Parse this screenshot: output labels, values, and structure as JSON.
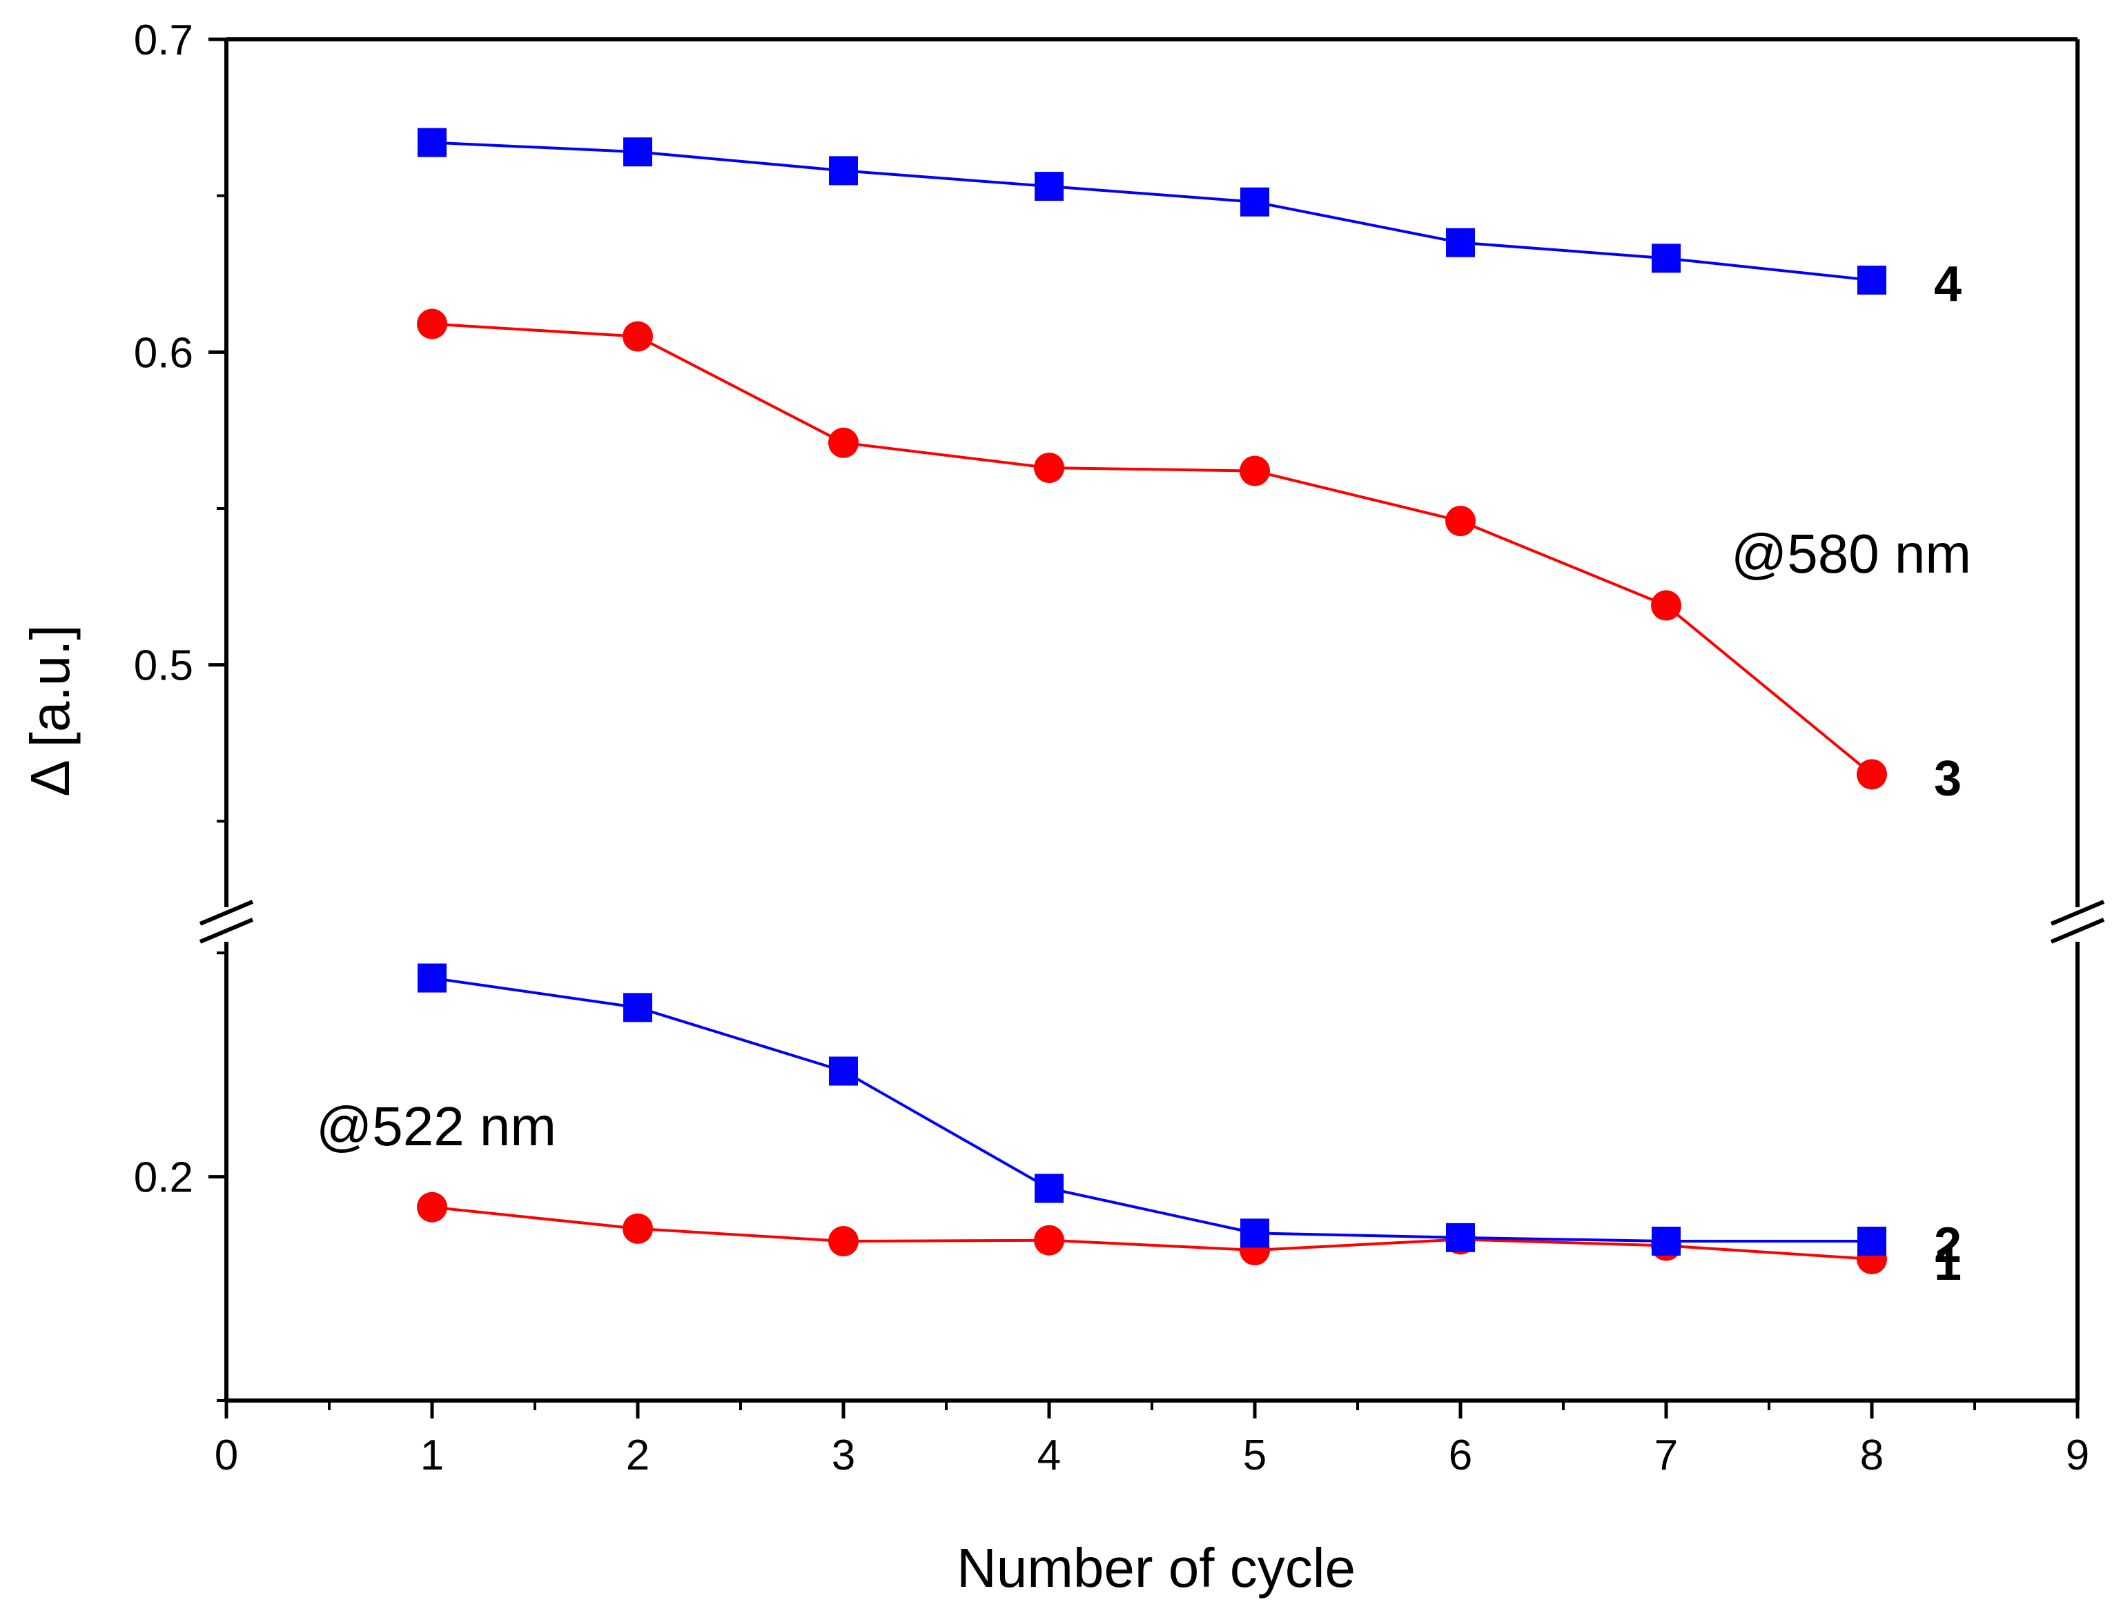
{
  "chart_data": {
    "type": "line",
    "xlabel": "Number of cycle",
    "ylabel": "Δ [a.u.]",
    "xlim": [
      0,
      9
    ],
    "x_ticks": [
      "0",
      "1",
      "2",
      "3",
      "4",
      "5",
      "6",
      "7",
      "8",
      "9"
    ],
    "ylim": [
      0.15,
      0.7
    ],
    "y_axis_break": [
      0.2525,
      0.4225
    ],
    "y_segments": [
      {
        "range": [
          0.15,
          0.2525
        ]
      },
      {
        "range": [
          0.4225,
          0.7
        ]
      }
    ],
    "y_ticks": [
      {
        "value": 0.2,
        "label": "0.2"
      },
      {
        "value": 0.5,
        "label": "0.5"
      },
      {
        "value": 0.6,
        "label": "0.6"
      },
      {
        "value": 0.7,
        "label": "0.7"
      }
    ],
    "grid": false,
    "annotations": [
      "@580 nm",
      "@522 nm"
    ],
    "x": [
      1,
      2,
      3,
      4,
      5,
      6,
      7,
      8
    ],
    "series": [
      {
        "label": "1",
        "marker": "circle",
        "color": "#ff0000",
        "values": [
          0.1932,
          0.1884,
          0.1856,
          0.1858,
          0.1836,
          0.186,
          0.1846,
          0.1816
        ]
      },
      {
        "label": "2",
        "marker": "square",
        "color": "#0000ff",
        "values": [
          0.2444,
          0.2378,
          0.2236,
          0.1974,
          0.1874,
          0.1864,
          0.1856,
          0.1856
        ]
      },
      {
        "label": "3",
        "marker": "circle",
        "color": "#ff0000",
        "values": [
          0.609,
          0.605,
          0.571,
          0.563,
          0.562,
          0.546,
          0.519,
          0.465
        ]
      },
      {
        "label": "4",
        "marker": "square",
        "color": "#0000ff",
        "values": [
          0.667,
          0.664,
          0.658,
          0.653,
          0.648,
          0.635,
          0.63,
          0.623
        ]
      }
    ]
  }
}
